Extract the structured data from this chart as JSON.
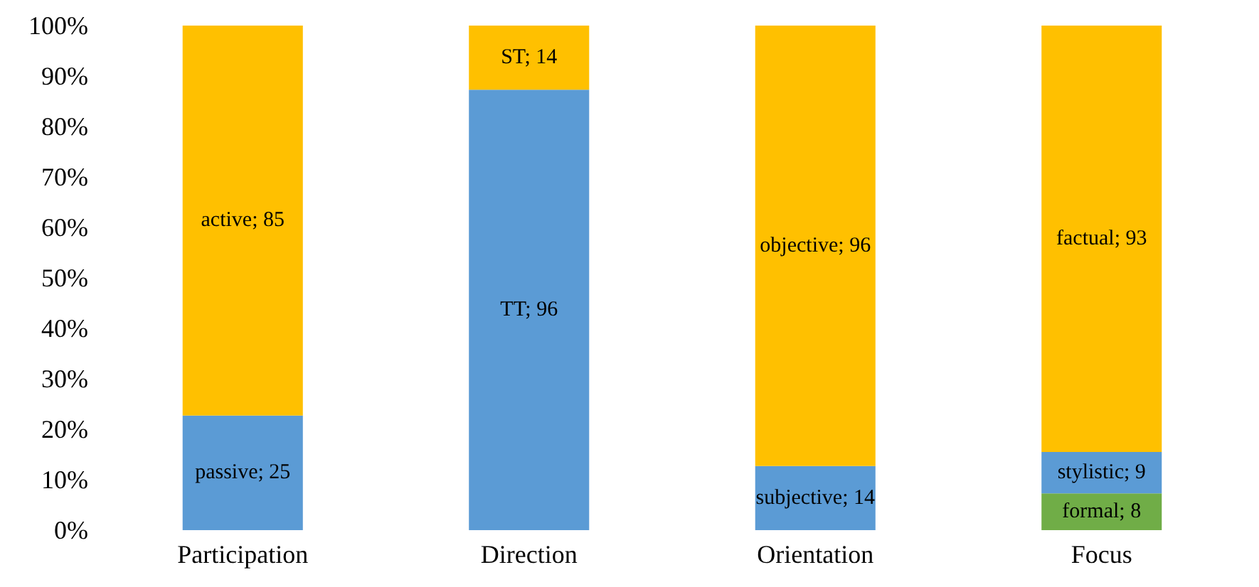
{
  "chart_data": {
    "type": "bar",
    "stacked": true,
    "categories": [
      "Participation",
      "Direction",
      "Orientation",
      "Focus"
    ],
    "series": [
      {
        "color": "#70ad47",
        "values": [
          null,
          null,
          null,
          7.3
        ]
      },
      {
        "color": "#5b9bd5",
        "values": [
          22.7,
          87.3,
          12.7,
          8.2
        ]
      },
      {
        "color": "#ffc000",
        "values": [
          77.3,
          12.7,
          87.3,
          84.5
        ]
      }
    ],
    "annotations": [
      "passive; 25",
      "active; 85",
      "TT; 96",
      "ST; 14",
      "subjective; 14",
      "objective; 96",
      "formal; 8",
      "stylistic; 9",
      "factual; 93"
    ],
    "ylim": [
      0,
      100
    ],
    "yticks": [
      {
        "value": 0,
        "label": "0%"
      },
      {
        "value": 10,
        "label": "10%"
      },
      {
        "value": 20,
        "label": "20%"
      },
      {
        "value": 30,
        "label": "30%"
      },
      {
        "value": 40,
        "label": "40%"
      },
      {
        "value": 50,
        "label": "50%"
      },
      {
        "value": 60,
        "label": "60%"
      },
      {
        "value": 70,
        "label": "70%"
      },
      {
        "value": 80,
        "label": "80%"
      },
      {
        "value": 90,
        "label": "90%"
      },
      {
        "value": 100,
        "label": "100%"
      }
    ],
    "grid": false
  }
}
